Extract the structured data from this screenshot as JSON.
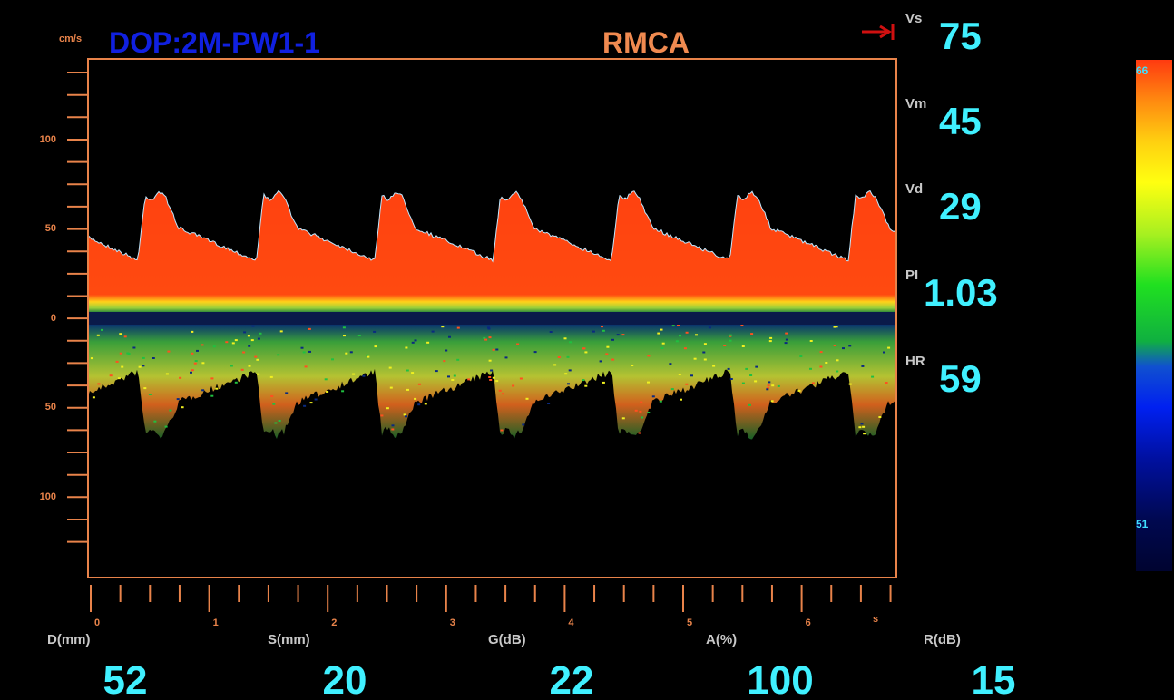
{
  "header": {
    "unit": "cm/s",
    "mode": "DOP:2M-PW1-1",
    "vessel": "RMCA"
  },
  "y_axis": {
    "ticks": [
      "100",
      "50",
      "0",
      "50",
      "100"
    ]
  },
  "x_axis": {
    "ticks": [
      "0",
      "1",
      "2",
      "3",
      "4",
      "5",
      "6"
    ],
    "unit": "s"
  },
  "measurements": [
    {
      "label": "Vs",
      "value": "75"
    },
    {
      "label": "Vm",
      "value": "45"
    },
    {
      "label": "Vd",
      "value": "29"
    },
    {
      "label": "PI",
      "value": "1.03"
    },
    {
      "label": "HR",
      "value": "59"
    }
  ],
  "parameters": [
    {
      "label": "D(mm)",
      "value": "52"
    },
    {
      "label": "S(mm)",
      "value": "20"
    },
    {
      "label": "G(dB)",
      "value": "22"
    },
    {
      "label": "A(%)",
      "value": "100"
    },
    {
      "label": "R(dB)",
      "value": "15"
    }
  ],
  "color_bar": {
    "max": "66",
    "min": "51"
  }
}
